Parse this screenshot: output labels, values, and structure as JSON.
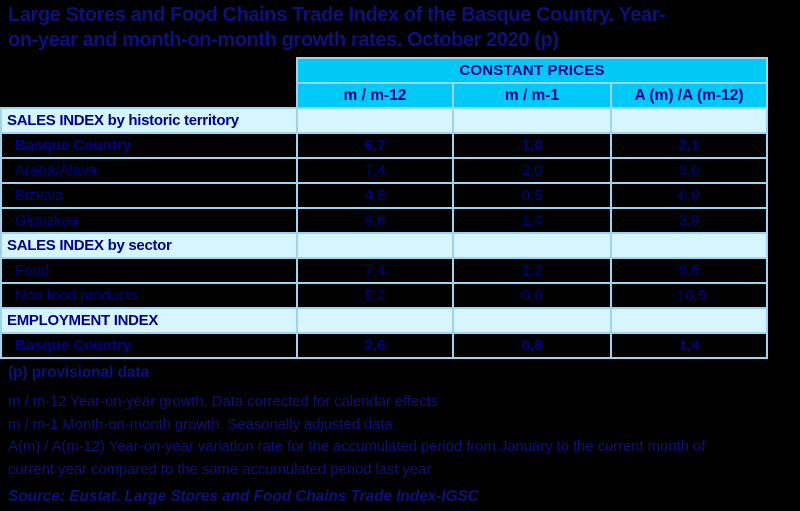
{
  "title": {
    "line1": "Large Stores and Food Chains Trade Index of the Basque Country. Year-",
    "line2": "on-year and month-on-month growth rates. October 2020 (p)"
  },
  "table": {
    "group_header": "CONSTANT PRICES",
    "columns": [
      "m / m-12",
      "m / m-1",
      "A (m) /A (m-12)"
    ],
    "rows": [
      {
        "type": "section",
        "label": "SALES INDEX by historic territory",
        "values": [
          "",
          "",
          ""
        ]
      },
      {
        "type": "data-bold",
        "label": "Basque Country",
        "values": [
          "6,7",
          "1,0",
          "2,1"
        ]
      },
      {
        "type": "data",
        "label": "Araba/Álava",
        "values": [
          "7,4",
          "2,0",
          "3,0"
        ]
      },
      {
        "type": "data",
        "label": "Bizkaia",
        "values": [
          "4,8",
          "0,5",
          "0,9"
        ]
      },
      {
        "type": "data",
        "label": "Gipuzkoa",
        "values": [
          "9,6",
          "1,4",
          "3,9"
        ]
      },
      {
        "type": "section",
        "label": "SALES INDEX by sector",
        "values": [
          "",
          "",
          ""
        ]
      },
      {
        "type": "data",
        "label": "Food",
        "values": [
          "7,4",
          "1,2",
          "8,6"
        ]
      },
      {
        "type": "data",
        "label": "Non food products",
        "values": [
          "5,2",
          "0,6",
          "-10,5"
        ]
      },
      {
        "type": "section",
        "label": "EMPLOYMENT INDEX",
        "values": [
          "",
          "",
          ""
        ]
      },
      {
        "type": "data-bold",
        "label": "Basque Country",
        "values": [
          "2,6",
          "0,8",
          "1,4"
        ]
      }
    ]
  },
  "footnotes": {
    "provisional": "(p) provisional data",
    "note_m12": "m / m-12 Year-on-year growth. Data corrected for calendar effects",
    "note_m1": "m / m-1 Month-on-month growth. Seasonally adjusted data",
    "note_accumulated": "A(m) / A(m-12) Year-on-year variation rate for the accumulated period from January to the current month of current year compared to the same accumulated period last year",
    "source": "Source: Eustat. Large Stores and Food Chains Trade Index-IGSC"
  },
  "colors": {
    "background": "#000000",
    "header_cyan": "#00c9f5",
    "section_pale_cyan": "#d5f6fe",
    "border_light_blue": "#9fd3ef",
    "table_text_navy": "#00008b",
    "title_text_navy": "#0d117d"
  }
}
